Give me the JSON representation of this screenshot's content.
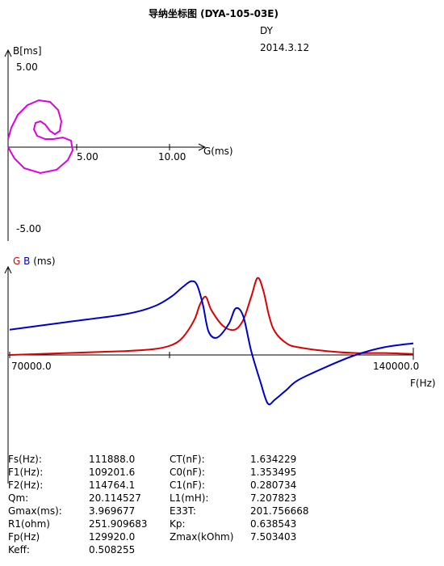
{
  "header": {
    "title": "导纳坐标图 (DYA-105-03E)",
    "operator": "DY",
    "date": "2014.3.12"
  },
  "colors": {
    "circle": "#e000e0",
    "G": "#dd0000",
    "B": "#0000cc",
    "axis": "#000000"
  },
  "admittance_plot": {
    "ylabel": "B[ms]",
    "xlabel": "G(ms)",
    "xticks": [
      "5.00",
      "10.00"
    ],
    "yticks": [
      "5.00",
      "-5.00"
    ]
  },
  "frequency_plot": {
    "label_g": "G",
    "label_b": "B",
    "label_unit": "(ms)",
    "x_start": "70000.0",
    "x_end": "140000.0",
    "xlabel": "F(Hz)"
  },
  "chart_data": [
    {
      "type": "scatter",
      "title": "导纳坐标图 (DYA-105-03E)",
      "xlabel": "G(ms)",
      "ylabel": "B[ms]",
      "xlim": [
        0,
        12
      ],
      "ylim": [
        -6,
        5.5
      ],
      "series": [
        {
          "values_xy": [
            [
              0,
              0.5
            ],
            [
              0.2,
              1.2
            ],
            [
              0.6,
              2.0
            ],
            [
              1.2,
              2.6
            ],
            [
              1.9,
              2.9
            ],
            [
              2.6,
              2.8
            ],
            [
              3.1,
              2.3
            ],
            [
              3.3,
              1.6
            ],
            [
              3.2,
              1.0
            ],
            [
              2.9,
              0.8
            ],
            [
              2.6,
              1.0
            ],
            [
              2.3,
              1.4
            ],
            [
              2.0,
              1.6
            ],
            [
              1.7,
              1.5
            ],
            [
              1.6,
              1.1
            ],
            [
              1.8,
              0.7
            ],
            [
              2.3,
              0.5
            ],
            [
              2.8,
              0.5
            ],
            [
              3.4,
              0.6
            ],
            [
              3.9,
              0.4
            ],
            [
              4.0,
              -0.2
            ],
            [
              3.7,
              -0.8
            ],
            [
              3.0,
              -1.4
            ],
            [
              2.0,
              -1.6
            ],
            [
              1.0,
              -1.3
            ],
            [
              0.4,
              -0.7
            ],
            [
              0,
              0
            ]
          ]
        }
      ]
    },
    {
      "type": "line",
      "xlabel": "F(Hz)",
      "ylabel": "(ms)",
      "xlim": [
        70000,
        140000
      ],
      "ylim": [
        -6,
        4.5
      ],
      "series": [
        {
          "name": "G",
          "x": [
            70000,
            80000,
            90000,
            95000,
            98000,
            100000,
            102000,
            103000,
            104000,
            105000,
            107000,
            109000,
            110500,
            111888,
            113000,
            114000,
            115000,
            116000,
            118000,
            120000,
            125000,
            130000,
            135000,
            140000
          ],
          "values": [
            0.0,
            0.1,
            0.2,
            0.3,
            0.5,
            0.9,
            1.8,
            2.6,
            3.0,
            2.3,
            1.5,
            1.3,
            1.8,
            3.0,
            3.97,
            3.3,
            2.0,
            1.2,
            0.6,
            0.4,
            0.2,
            0.1,
            0.1,
            0.05
          ]
        },
        {
          "name": "B",
          "x": [
            70000,
            80000,
            90000,
            95000,
            98000,
            100000,
            101500,
            102500,
            103500,
            104500,
            106000,
            108000,
            109200,
            110500,
            111888,
            113500,
            114764,
            116000,
            118000,
            120000,
            125000,
            130000,
            135000,
            140000
          ],
          "values": [
            1.3,
            1.7,
            2.1,
            2.5,
            3.0,
            3.5,
            3.8,
            3.6,
            2.6,
            1.2,
            0.9,
            1.6,
            2.4,
            2.0,
            0.2,
            -1.4,
            -2.5,
            -2.3,
            -1.8,
            -1.3,
            -0.6,
            0.0,
            0.4,
            0.6
          ]
        }
      ]
    }
  ],
  "parameters": [
    {
      "label": "Fs(Hz):",
      "value": "111888.0"
    },
    {
      "label": "F1(Hz):",
      "value": "109201.6"
    },
    {
      "label": "F2(Hz):",
      "value": "114764.1"
    },
    {
      "label": "Qm:",
      "value": "20.114527"
    },
    {
      "label": "Gmax(ms):",
      "value": "3.969677"
    },
    {
      "label": "R1(ohm)",
      "value": "251.909683"
    },
    {
      "label": "Fp(Hz)",
      "value": "129920.0"
    },
    {
      "label": "Keff:",
      "value": "0.508255"
    },
    {
      "label": "CT(nF):",
      "value": "1.634229"
    },
    {
      "label": "C0(nF):",
      "value": "1.353495"
    },
    {
      "label": "C1(nF):",
      "value": "0.280734"
    },
    {
      "label": "L1(mH):",
      "value": "7.207823"
    },
    {
      "label": "E33T:",
      "value": "201.756668"
    },
    {
      "label": "Kp:",
      "value": "0.638543"
    },
    {
      "label": "Zmax(kOhm)",
      "value": "7.503403"
    }
  ]
}
